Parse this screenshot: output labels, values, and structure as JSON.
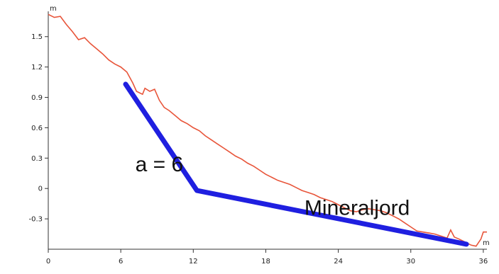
{
  "chart_data": {
    "type": "line",
    "title": "",
    "xlabel": "",
    "ylabel": "",
    "x_unit": "m",
    "y_unit": "m",
    "xlim": [
      0,
      36.3
    ],
    "ylim": [
      -0.6,
      1.75
    ],
    "x_ticks": [
      0,
      6,
      12,
      18,
      24,
      30,
      36
    ],
    "y_ticks": [
      1.5,
      1.2,
      0.9,
      0.6,
      0.3,
      0,
      -0.3
    ],
    "y_tick_labels": [
      "1.5",
      "1.2",
      "0.9",
      "0.6",
      "0.3",
      "0",
      "-0.3"
    ],
    "grid": false,
    "series": [
      {
        "color": "#e8553a",
        "points": [
          [
            0,
            1.72
          ],
          [
            0.5,
            1.69
          ],
          [
            1.0,
            1.7
          ],
          [
            1.5,
            1.62
          ],
          [
            2.0,
            1.55
          ],
          [
            2.5,
            1.47
          ],
          [
            3.0,
            1.49
          ],
          [
            3.5,
            1.43
          ],
          [
            4.0,
            1.38
          ],
          [
            4.5,
            1.33
          ],
          [
            5.0,
            1.27
          ],
          [
            5.5,
            1.23
          ],
          [
            6.0,
            1.2
          ],
          [
            6.5,
            1.15
          ],
          [
            7.0,
            1.04
          ],
          [
            7.3,
            0.96
          ],
          [
            7.8,
            0.93
          ],
          [
            8.0,
            0.99
          ],
          [
            8.4,
            0.96
          ],
          [
            8.8,
            0.98
          ],
          [
            9.2,
            0.87
          ],
          [
            9.6,
            0.8
          ],
          [
            10.0,
            0.77
          ],
          [
            10.5,
            0.72
          ],
          [
            11.0,
            0.67
          ],
          [
            11.5,
            0.64
          ],
          [
            12.0,
            0.6
          ],
          [
            12.5,
            0.57
          ],
          [
            13.0,
            0.52
          ],
          [
            13.5,
            0.48
          ],
          [
            14.0,
            0.44
          ],
          [
            14.5,
            0.4
          ],
          [
            15.0,
            0.36
          ],
          [
            15.5,
            0.32
          ],
          [
            16.0,
            0.29
          ],
          [
            16.5,
            0.25
          ],
          [
            17.0,
            0.22
          ],
          [
            17.5,
            0.18
          ],
          [
            18.0,
            0.14
          ],
          [
            18.5,
            0.11
          ],
          [
            19.0,
            0.08
          ],
          [
            19.5,
            0.06
          ],
          [
            20.0,
            0.04
          ],
          [
            20.5,
            0.01
          ],
          [
            21.0,
            -0.02
          ],
          [
            21.5,
            -0.04
          ],
          [
            22.0,
            -0.06
          ],
          [
            22.5,
            -0.09
          ],
          [
            23.0,
            -0.11
          ],
          [
            23.5,
            -0.13
          ],
          [
            24.0,
            -0.16
          ],
          [
            24.5,
            -0.19
          ],
          [
            25.0,
            -0.22
          ],
          [
            25.5,
            -0.23
          ],
          [
            26.0,
            -0.21
          ],
          [
            26.5,
            -0.2
          ],
          [
            27.0,
            -0.21
          ],
          [
            27.5,
            -0.22
          ],
          [
            28.0,
            -0.24
          ],
          [
            28.5,
            -0.27
          ],
          [
            29.0,
            -0.3
          ],
          [
            29.5,
            -0.34
          ],
          [
            30.0,
            -0.38
          ],
          [
            30.5,
            -0.42
          ],
          [
            31.0,
            -0.43
          ],
          [
            31.5,
            -0.44
          ],
          [
            32.0,
            -0.45
          ],
          [
            32.5,
            -0.47
          ],
          [
            33.0,
            -0.49
          ],
          [
            33.3,
            -0.41
          ],
          [
            33.6,
            -0.48
          ],
          [
            34.0,
            -0.5
          ],
          [
            34.5,
            -0.53
          ],
          [
            35.0,
            -0.56
          ],
          [
            35.4,
            -0.57
          ],
          [
            35.8,
            -0.5
          ],
          [
            36.0,
            -0.43
          ],
          [
            36.3,
            -0.43
          ]
        ]
      },
      {
        "color": "#1f1fe0",
        "points": [
          [
            6.4,
            1.03
          ],
          [
            12.3,
            -0.02
          ],
          [
            34.6,
            -0.55
          ]
        ]
      }
    ],
    "annotations": [
      {
        "text": "a = 6",
        "x": 7.2,
        "y": 0.17
      },
      {
        "text": "Mineraljord",
        "x": 21.2,
        "y": -0.26
      }
    ]
  }
}
